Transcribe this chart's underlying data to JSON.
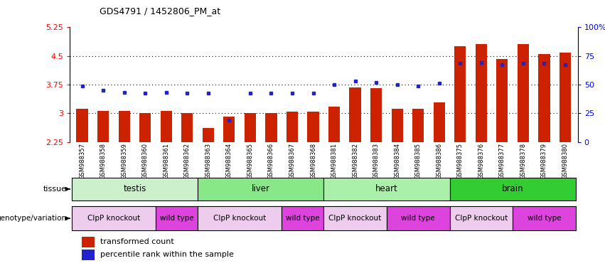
{
  "title": "GDS4791 / 1452806_PM_at",
  "samples": [
    "GSM988357",
    "GSM988358",
    "GSM988359",
    "GSM988360",
    "GSM988361",
    "GSM988362",
    "GSM988363",
    "GSM988364",
    "GSM988365",
    "GSM988366",
    "GSM988367",
    "GSM988368",
    "GSM988381",
    "GSM988382",
    "GSM988383",
    "GSM988384",
    "GSM988385",
    "GSM988386",
    "GSM988375",
    "GSM988376",
    "GSM988377",
    "GSM988378",
    "GSM988379",
    "GSM988380"
  ],
  "bar_values": [
    3.12,
    3.06,
    3.06,
    3.0,
    3.06,
    3.0,
    2.62,
    2.92,
    3.0,
    3.0,
    3.05,
    3.05,
    3.18,
    3.68,
    3.65,
    3.12,
    3.12,
    3.28,
    4.75,
    4.82,
    4.42,
    4.82,
    4.55,
    4.58
  ],
  "dot_values": [
    3.72,
    3.6,
    3.55,
    3.52,
    3.55,
    3.52,
    3.52,
    2.82,
    3.52,
    3.52,
    3.52,
    3.52,
    3.75,
    3.85,
    3.8,
    3.75,
    3.72,
    3.78,
    4.3,
    4.32,
    4.28,
    4.3,
    4.3,
    4.28
  ],
  "tissues": [
    {
      "label": "testis",
      "start": 0,
      "end": 6,
      "color": "#ccf0cc"
    },
    {
      "label": "liver",
      "start": 6,
      "end": 12,
      "color": "#88e888"
    },
    {
      "label": "heart",
      "start": 12,
      "end": 18,
      "color": "#aaf0aa"
    },
    {
      "label": "brain",
      "start": 18,
      "end": 24,
      "color": "#33cc33"
    }
  ],
  "genotypes": [
    {
      "label": "ClpP knockout",
      "start": 0,
      "end": 4,
      "color": "#eeccee"
    },
    {
      "label": "wild type",
      "start": 4,
      "end": 6,
      "color": "#dd44dd"
    },
    {
      "label": "ClpP knockout",
      "start": 6,
      "end": 10,
      "color": "#eeccee"
    },
    {
      "label": "wild type",
      "start": 10,
      "end": 12,
      "color": "#dd44dd"
    },
    {
      "label": "ClpP knockout",
      "start": 12,
      "end": 15,
      "color": "#eeccee"
    },
    {
      "label": "wild type",
      "start": 15,
      "end": 18,
      "color": "#dd44dd"
    },
    {
      "label": "ClpP knockout",
      "start": 18,
      "end": 21,
      "color": "#eeccee"
    },
    {
      "label": "wild type",
      "start": 21,
      "end": 24,
      "color": "#dd44dd"
    }
  ],
  "ymin": 2.25,
  "ymax": 5.25,
  "yticks": [
    2.25,
    3.0,
    3.75,
    4.5,
    5.25
  ],
  "ytick_labels": [
    "2.25",
    "3",
    "3.75",
    "4.5",
    "5.25"
  ],
  "right_yticks": [
    0,
    25,
    50,
    75,
    100
  ],
  "right_ytick_labels": [
    "0",
    "25",
    "50",
    "75",
    "100%"
  ],
  "bar_color": "#cc2200",
  "dot_color": "#2222cc"
}
